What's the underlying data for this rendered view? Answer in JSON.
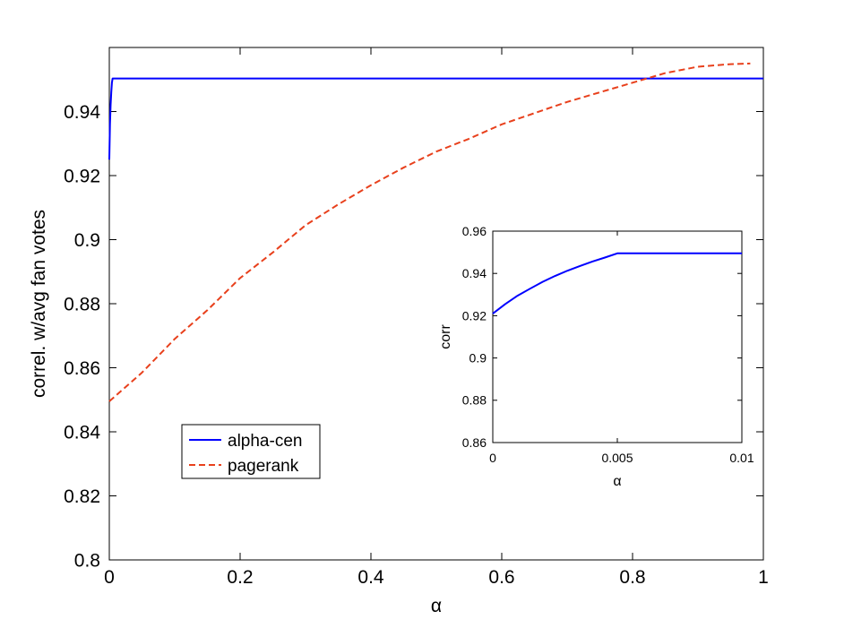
{
  "chart_data": [
    {
      "type": "line",
      "title": "",
      "xlabel": "α",
      "ylabel": "correl. w/avg fan votes",
      "xlim": [
        0,
        1
      ],
      "ylim": [
        0.8,
        0.96
      ],
      "xticks": [
        0,
        0.2,
        0.4,
        0.6,
        0.8,
        1
      ],
      "xtick_labels": [
        "0",
        "0.2",
        "0.4",
        "0.6",
        "0.8",
        "1"
      ],
      "yticks": [
        0.8,
        0.82,
        0.84,
        0.86,
        0.88,
        0.9,
        0.92,
        0.94
      ],
      "ytick_labels": [
        "0.8",
        "0.82",
        "0.84",
        "0.86",
        "0.88",
        "0.9",
        "0.92",
        "0.94"
      ],
      "grid": false,
      "legend_position": "bottom-left",
      "series": [
        {
          "name": "alpha-cen",
          "color": "#0000ff",
          "style": "solid",
          "x": [
            0,
            0.001,
            0.002,
            0.003,
            0.004,
            0.005,
            0.1,
            0.2,
            0.3,
            0.4,
            0.5,
            0.6,
            0.7,
            0.8,
            0.9,
            1.0
          ],
          "y": [
            0.925,
            0.936,
            0.942,
            0.946,
            0.949,
            0.9503,
            0.9503,
            0.9503,
            0.9503,
            0.9503,
            0.9503,
            0.9503,
            0.9503,
            0.9503,
            0.9503,
            0.9503
          ]
        },
        {
          "name": "pagerank",
          "color": "#e8401c",
          "style": "dashed",
          "x": [
            0.0,
            0.05,
            0.1,
            0.15,
            0.2,
            0.25,
            0.3,
            0.35,
            0.4,
            0.45,
            0.5,
            0.55,
            0.6,
            0.65,
            0.7,
            0.75,
            0.8,
            0.85,
            0.9,
            0.95,
            0.98
          ],
          "y": [
            0.8495,
            0.8585,
            0.869,
            0.878,
            0.888,
            0.896,
            0.9045,
            0.911,
            0.917,
            0.9225,
            0.9275,
            0.9315,
            0.936,
            0.9395,
            0.943,
            0.946,
            0.949,
            0.952,
            0.954,
            0.9548,
            0.955
          ]
        }
      ]
    },
    {
      "type": "line",
      "title": "",
      "xlabel": "α",
      "ylabel": "corr",
      "xlim": [
        0,
        0.01
      ],
      "ylim": [
        0.86,
        0.96
      ],
      "xticks": [
        0,
        0.005,
        0.01
      ],
      "xtick_labels": [
        "0",
        "0.005",
        "0.01"
      ],
      "yticks": [
        0.86,
        0.88,
        0.9,
        0.92,
        0.94,
        0.96
      ],
      "ytick_labels": [
        "0.86",
        "0.88",
        "0.9",
        "0.92",
        "0.94",
        "0.96"
      ],
      "grid": false,
      "series": [
        {
          "color": "#0000ff",
          "style": "solid",
          "x": [
            0,
            0.0005,
            0.001,
            0.0015,
            0.002,
            0.0025,
            0.003,
            0.0035,
            0.004,
            0.0045,
            0.005,
            0.006,
            0.007,
            0.008,
            0.009,
            0.01
          ],
          "y": [
            0.921,
            0.9255,
            0.9295,
            0.9328,
            0.936,
            0.9388,
            0.9413,
            0.9435,
            0.9456,
            0.9475,
            0.9495,
            0.9495,
            0.9495,
            0.9495,
            0.9495,
            0.9495
          ]
        }
      ]
    }
  ]
}
